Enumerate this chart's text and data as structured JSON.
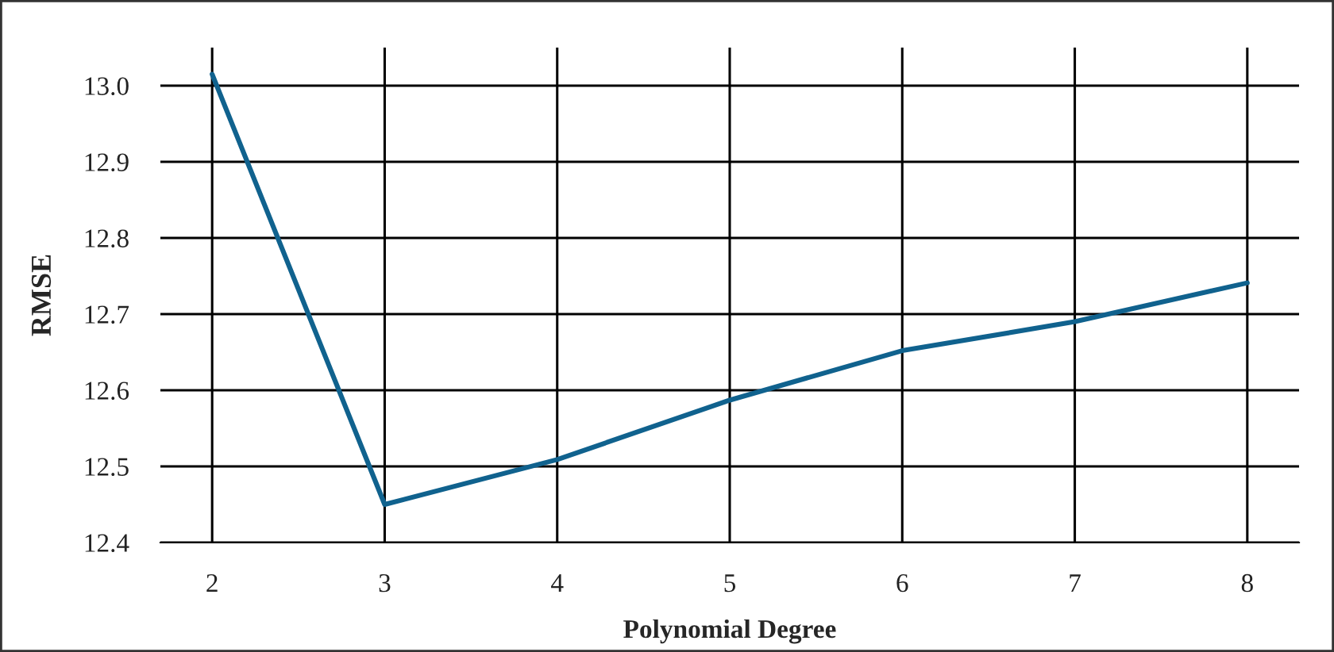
{
  "chart_data": {
    "type": "line",
    "xlabel": "Polynomial Degree",
    "ylabel": "RMSE",
    "x": [
      2,
      3,
      4,
      5,
      6,
      7,
      8
    ],
    "series": [
      {
        "color": "#10628e",
        "values": [
          13.015,
          12.45,
          12.509,
          12.587,
          12.652,
          12.69,
          12.741
        ]
      }
    ],
    "xlim": [
      1.7,
      8.3
    ],
    "xticks": [
      2,
      3,
      4,
      5,
      6,
      7,
      8
    ],
    "ylim": [
      12.4,
      13.05
    ],
    "yticks": [
      {
        "value": 12.4,
        "label": "12.4"
      },
      {
        "value": 12.5,
        "label": "12.5"
      },
      {
        "value": 12.6,
        "label": "12.6"
      },
      {
        "value": 12.7,
        "label": "12.7"
      },
      {
        "value": 12.8,
        "label": "12.8"
      },
      {
        "value": 12.9,
        "label": "12.9"
      },
      {
        "value": 13.0,
        "label": "13.0"
      }
    ],
    "grid": true,
    "marker": "none",
    "line_style": "solid"
  }
}
